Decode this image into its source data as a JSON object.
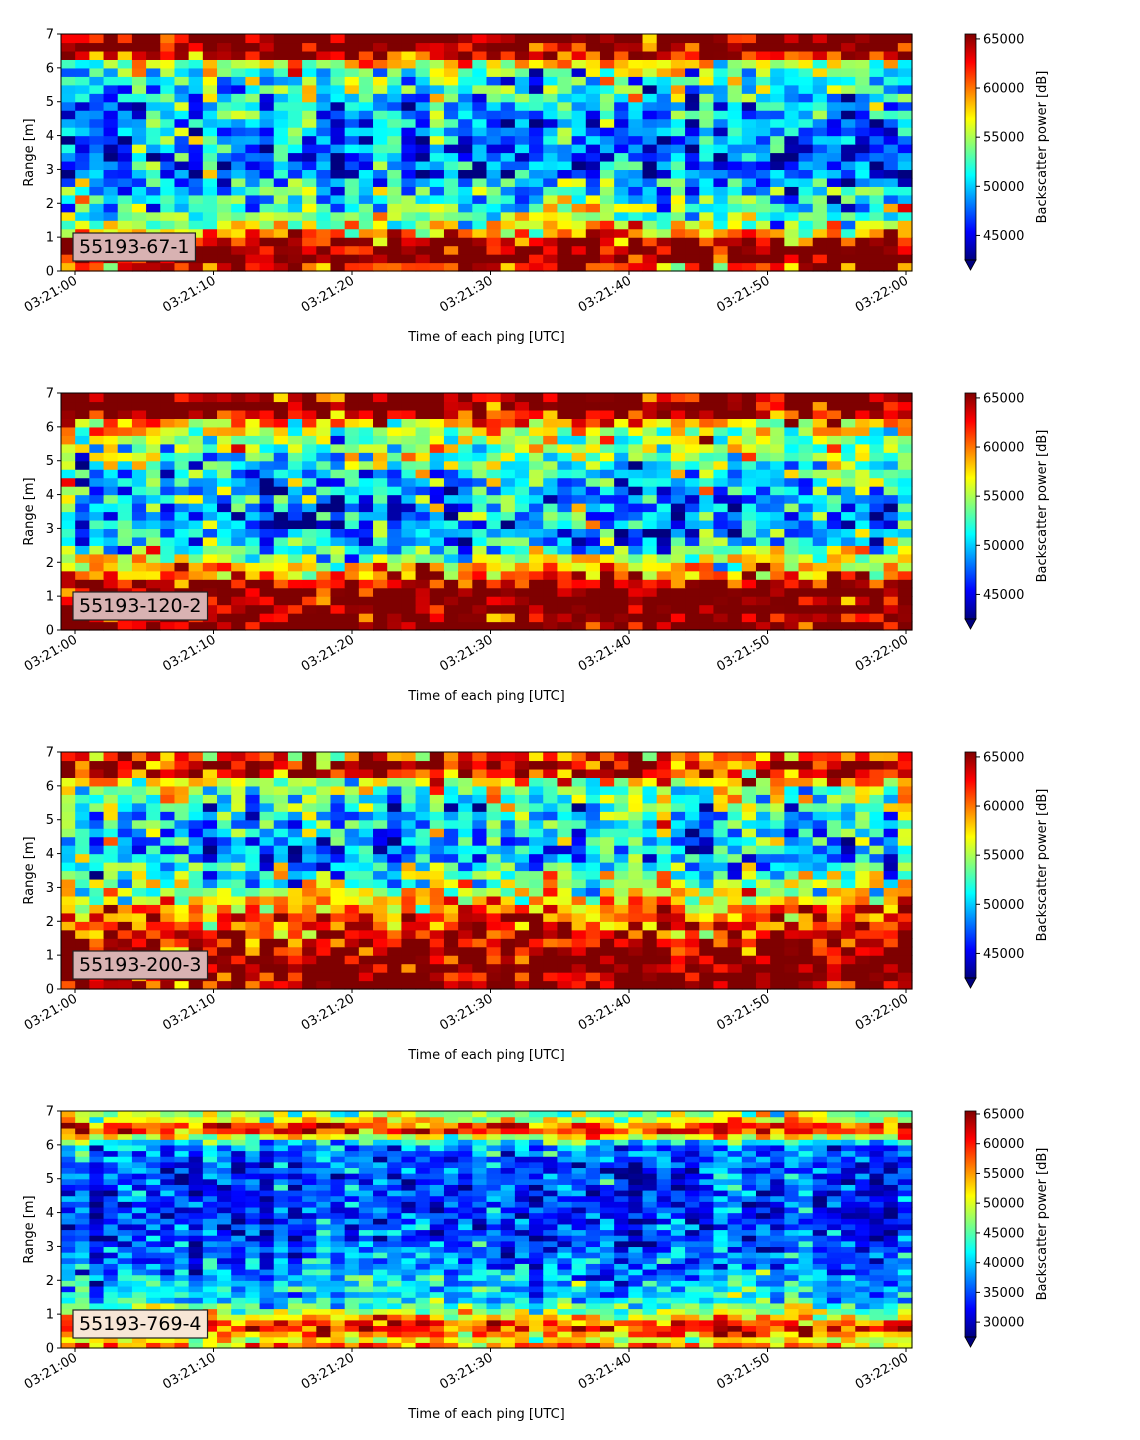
{
  "figure": {
    "colormap": "jet",
    "colormap_stops": [
      "#00007f",
      "#0000ff",
      "#007fff",
      "#00ffff",
      "#7fff7f",
      "#ffff00",
      "#ff7f00",
      "#ff0000",
      "#7f0000"
    ],
    "axes_edge_color": "#000000"
  },
  "chart_data": [
    {
      "type": "heatmap",
      "label": "55193-67-1",
      "label_box_color": "#d8b2b2",
      "xlabel": "Time of each ping [UTC]",
      "ylabel": "Range [m]",
      "xticks": [
        "03:21:00",
        "03:21:10",
        "03:21:20",
        "03:21:30",
        "03:21:40",
        "03:21:50",
        "03:22:00"
      ],
      "xlim": [
        "03:21:00",
        "03:22:00"
      ],
      "yticks": [
        "0",
        "1",
        "2",
        "3",
        "4",
        "5",
        "6",
        "7"
      ],
      "ylim": [
        0,
        7
      ],
      "colorbar": {
        "label": "Backscatter power [dB]",
        "ticks": [
          "45000",
          "50000",
          "55000",
          "60000",
          "65000"
        ],
        "range": [
          42500,
          65500
        ],
        "extend": "min"
      },
      "n_pings": 60,
      "range_bins": 28,
      "mean_profile_by_range": [
        {
          "range": 0.125,
          "value": 62000
        },
        {
          "range": 0.25,
          "value": 66000
        },
        {
          "range": 0.75,
          "value": 66000
        },
        {
          "range": 1.0,
          "value": 63000
        },
        {
          "range": 1.25,
          "value": 56000
        },
        {
          "range": 1.5,
          "value": 54000
        },
        {
          "range": 2.0,
          "value": 52000
        },
        {
          "range": 3.0,
          "value": 48000
        },
        {
          "range": 4.0,
          "value": 49000
        },
        {
          "range": 5.0,
          "value": 50000
        },
        {
          "range": 6.0,
          "value": 54000
        },
        {
          "range": 6.5,
          "value": 66000
        },
        {
          "range": 7.0,
          "value": 66000
        }
      ],
      "noise": 4500,
      "seed": 11
    },
    {
      "type": "heatmap",
      "label": "55193-120-2",
      "label_box_color": "#d8b2b2",
      "xlabel": "Time of each ping [UTC]",
      "ylabel": "Range [m]",
      "xticks": [
        "03:21:00",
        "03:21:10",
        "03:21:20",
        "03:21:30",
        "03:21:40",
        "03:21:50",
        "03:22:00"
      ],
      "xlim": [
        "03:21:00",
        "03:22:00"
      ],
      "yticks": [
        "0",
        "1",
        "2",
        "3",
        "4",
        "5",
        "6",
        "7"
      ],
      "ylim": [
        0,
        7
      ],
      "colorbar": {
        "label": "Backscatter power [dB]",
        "ticks": [
          "45000",
          "50000",
          "55000",
          "60000",
          "65000"
        ],
        "range": [
          42500,
          65500
        ],
        "extend": "min"
      },
      "n_pings": 60,
      "range_bins": 28,
      "mean_profile_by_range": [
        {
          "range": 0.125,
          "value": 66000
        },
        {
          "range": 1.0,
          "value": 66000
        },
        {
          "range": 1.25,
          "value": 65000
        },
        {
          "range": 1.5,
          "value": 62000
        },
        {
          "range": 1.75,
          "value": 59000
        },
        {
          "range": 2.0,
          "value": 56000
        },
        {
          "range": 2.5,
          "value": 50000
        },
        {
          "range": 3.0,
          "value": 48000
        },
        {
          "range": 4.0,
          "value": 49000
        },
        {
          "range": 5.0,
          "value": 52000
        },
        {
          "range": 6.0,
          "value": 56000
        },
        {
          "range": 6.5,
          "value": 66000
        },
        {
          "range": 7.0,
          "value": 66000
        }
      ],
      "noise": 4500,
      "seed": 23
    },
    {
      "type": "heatmap",
      "label": "55193-200-3",
      "label_box_color": "#d8b2b2",
      "xlabel": "Time of each ping [UTC]",
      "ylabel": "Range [m]",
      "xticks": [
        "03:21:00",
        "03:21:10",
        "03:21:20",
        "03:21:30",
        "03:21:40",
        "03:21:50",
        "03:22:00"
      ],
      "xlim": [
        "03:21:00",
        "03:22:00"
      ],
      "yticks": [
        "0",
        "1",
        "2",
        "3",
        "4",
        "5",
        "6",
        "7"
      ],
      "ylim": [
        0,
        7
      ],
      "colorbar": {
        "label": "Backscatter power [dB]",
        "ticks": [
          "45000",
          "50000",
          "55000",
          "60000",
          "65000"
        ],
        "range": [
          42500,
          65500
        ],
        "extend": "min"
      },
      "n_pings": 60,
      "range_bins": 28,
      "mean_profile_by_range": [
        {
          "range": 0.125,
          "value": 66000
        },
        {
          "range": 1.0,
          "value": 66000
        },
        {
          "range": 1.5,
          "value": 63000
        },
        {
          "range": 2.0,
          "value": 62000
        },
        {
          "range": 2.5,
          "value": 59000
        },
        {
          "range": 3.0,
          "value": 55000
        },
        {
          "range": 4.0,
          "value": 49000
        },
        {
          "range": 5.0,
          "value": 51000
        },
        {
          "range": 6.0,
          "value": 54000
        },
        {
          "range": 6.5,
          "value": 66000
        },
        {
          "range": 6.75,
          "value": 62000
        },
        {
          "range": 7.0,
          "value": 60000
        }
      ],
      "noise": 4500,
      "seed": 37
    },
    {
      "type": "heatmap",
      "label": "55193-769-4",
      "label_box_color": "#f7e6d6",
      "xlabel": "Time of each ping [UTC]",
      "ylabel": "Range [m]",
      "xticks": [
        "03:21:00",
        "03:21:10",
        "03:21:20",
        "03:21:30",
        "03:21:40",
        "03:21:50",
        "03:22:00"
      ],
      "xlim": [
        "03:21:00",
        "03:22:00"
      ],
      "yticks": [
        "0",
        "1",
        "2",
        "3",
        "4",
        "5",
        "6",
        "7"
      ],
      "ylim": [
        0,
        7
      ],
      "colorbar": {
        "label": "Backscatter power [dB]",
        "ticks": [
          "30000",
          "35000",
          "40000",
          "45000",
          "50000",
          "55000",
          "60000",
          "65000"
        ],
        "range": [
          27500,
          65500
        ],
        "extend": "min"
      },
      "n_pings": 60,
      "range_bins": 42,
      "mean_profile_by_range": [
        {
          "range": 0.1,
          "value": 55000
        },
        {
          "range": 0.25,
          "value": 50000
        },
        {
          "range": 0.5,
          "value": 60000
        },
        {
          "range": 0.75,
          "value": 58000
        },
        {
          "range": 1.0,
          "value": 48000
        },
        {
          "range": 1.5,
          "value": 40000
        },
        {
          "range": 2.5,
          "value": 37000
        },
        {
          "range": 4.0,
          "value": 33000
        },
        {
          "range": 5.0,
          "value": 34000
        },
        {
          "range": 6.0,
          "value": 37000
        },
        {
          "range": 6.5,
          "value": 63000
        },
        {
          "range": 6.75,
          "value": 50000
        },
        {
          "range": 7.0,
          "value": 45000
        }
      ],
      "noise": 5000,
      "seed": 53
    }
  ]
}
